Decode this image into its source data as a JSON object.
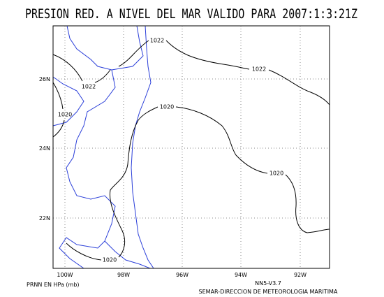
{
  "title": "PRESION RED. A NIVEL DEL MAR VALIDO PARA 2007:1:3:21Z",
  "lon_labels": [
    "100W",
    "98W",
    "96W",
    "94W",
    "92W"
  ],
  "lat_labels": [
    "26N",
    "24N",
    "22N"
  ],
  "contour_labels": [
    "1022",
    "1022",
    "1022",
    "1020",
    "1020",
    "1020",
    "1020"
  ],
  "footer": {
    "units": "PRNN EN HPa (mb)",
    "version": "NN5-V3.7",
    "credit": "SEMAR-DIRECCION DE METEOROLOGIA MARITIMA"
  }
}
